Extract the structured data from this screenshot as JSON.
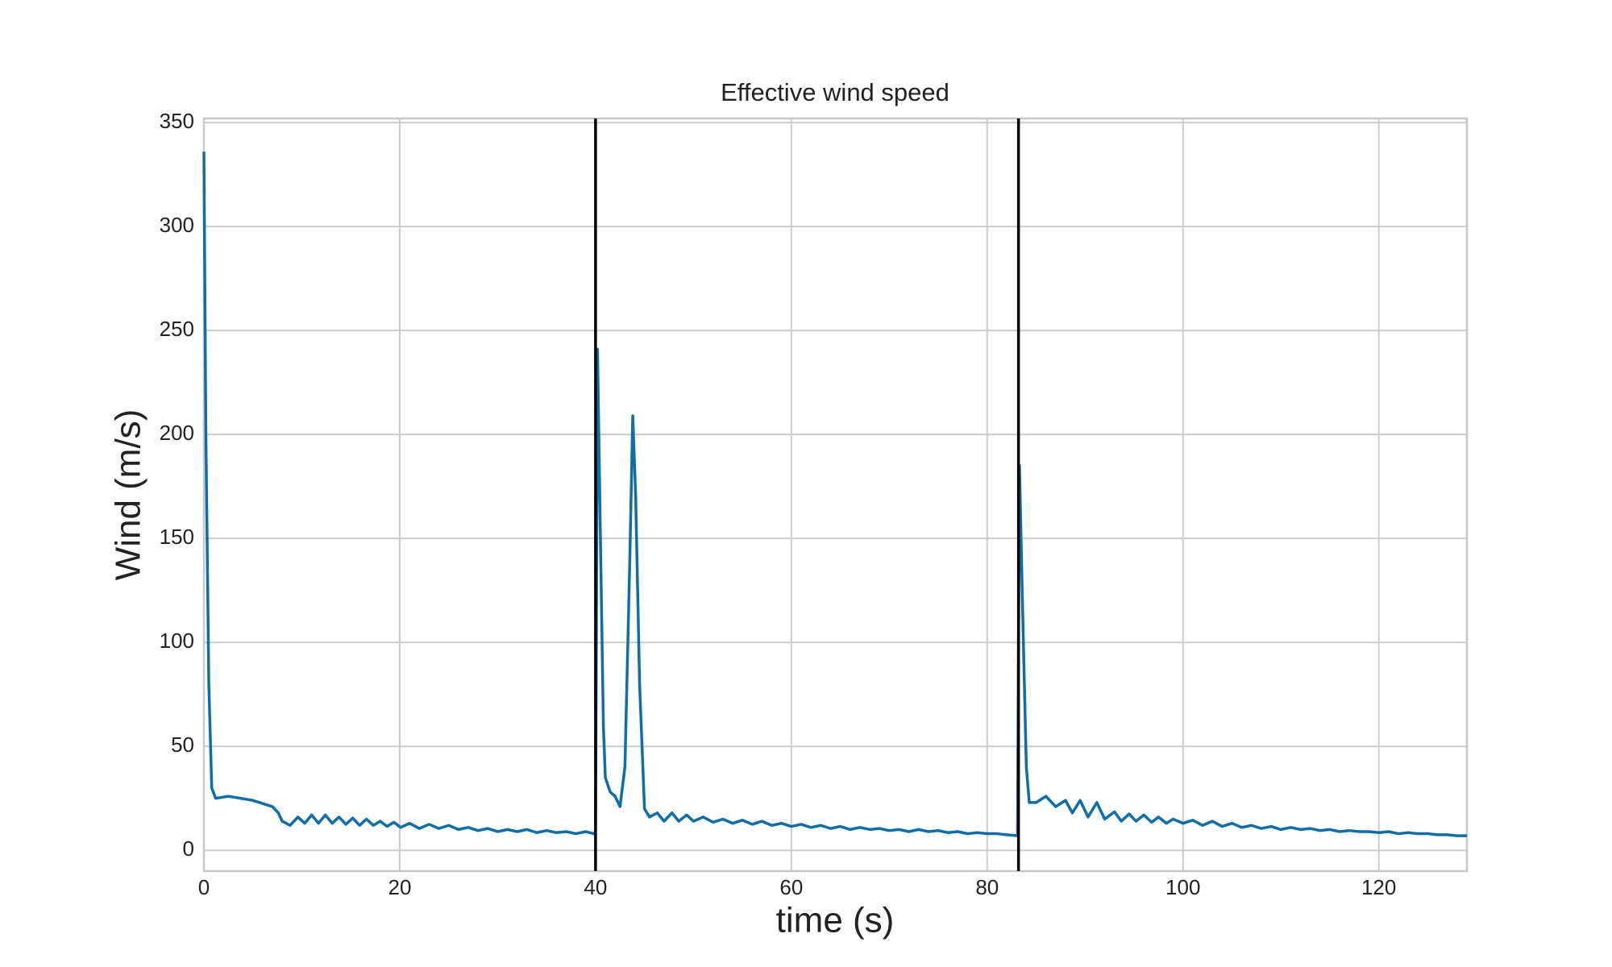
{
  "chart_data": {
    "type": "line",
    "title": "Effective wind speed",
    "xlabel": "time (s)",
    "ylabel": "Wind (m/s)",
    "x": [
      0,
      0.2,
      0.5,
      0.8,
      1.2,
      2.5,
      5,
      7,
      7.6,
      8,
      8.8,
      9.6,
      10.3,
      11,
      11.7,
      12.4,
      13.1,
      13.8,
      14.5,
      15.2,
      15.9,
      16.6,
      17.3,
      18,
      18.7,
      19.4,
      20.1,
      21,
      22,
      23,
      24,
      25,
      26,
      27,
      28,
      29,
      30,
      31,
      32,
      33,
      34,
      35,
      36,
      37,
      38,
      39,
      39.8,
      40,
      40.1,
      40.2,
      40.5,
      40.8,
      41,
      41.5,
      42,
      42.5,
      43,
      43.5,
      43.8,
      44.1,
      44.5,
      45,
      45.5,
      46.3,
      47,
      47.8,
      48.5,
      49.3,
      50,
      51,
      52,
      53,
      54,
      55,
      56,
      57,
      58,
      59,
      60,
      61,
      62,
      63,
      64,
      65,
      66,
      67,
      68,
      69,
      70,
      71,
      72,
      73,
      74,
      75,
      76,
      77,
      78,
      79,
      80,
      81,
      82,
      83.1,
      83.2,
      83.3,
      83.6,
      84,
      84.3,
      85,
      86,
      87,
      88,
      88.7,
      89.5,
      90.3,
      91.2,
      92,
      93,
      93.7,
      94.5,
      95.2,
      96,
      96.8,
      97.5,
      98.3,
      99,
      100,
      101,
      102,
      103,
      104,
      105,
      106,
      107,
      108,
      109,
      110,
      111,
      112,
      113,
      114,
      115,
      116,
      117,
      118,
      119,
      120,
      121,
      122,
      123,
      124,
      125,
      126,
      127,
      128,
      129
    ],
    "series": [
      {
        "name": "Effective wind speed",
        "color": "#0f6ea8",
        "values": [
          336,
          200,
          80,
          30,
          25,
          26,
          24,
          21,
          18,
          14,
          12,
          16,
          13,
          17,
          13,
          17,
          13,
          16,
          12.5,
          15.5,
          12,
          15,
          12,
          14,
          11.5,
          13.5,
          11,
          13,
          10.5,
          12.5,
          10.5,
          12,
          10,
          11,
          9.5,
          10.5,
          9,
          10,
          9,
          10,
          8.5,
          9.5,
          8.5,
          9,
          8,
          9,
          8,
          9,
          120,
          241,
          150,
          60,
          35,
          28,
          26,
          21,
          40,
          140,
          209,
          170,
          80,
          20,
          16,
          18,
          14,
          18,
          14,
          17,
          14,
          16,
          13.5,
          15,
          13,
          14.5,
          12.5,
          14,
          12,
          13,
          11.5,
          12.5,
          11,
          12,
          10.5,
          11.5,
          10,
          11,
          10,
          10.5,
          9.5,
          10,
          9,
          10,
          9,
          9.5,
          8.5,
          9,
          8,
          8.5,
          8,
          8,
          7.5,
          7,
          100,
          185,
          120,
          40,
          23,
          23,
          26,
          21,
          24,
          18,
          24,
          16,
          23,
          15,
          18.5,
          14,
          17.5,
          14,
          17,
          13.5,
          16,
          13,
          15,
          13,
          14.5,
          12,
          14,
          11.5,
          13,
          11,
          12,
          10.5,
          11.5,
          10,
          11,
          10,
          10.5,
          9.5,
          10,
          9,
          9.5,
          9,
          9,
          8.5,
          9,
          8,
          8.5,
          8,
          8,
          7.5,
          7.5,
          7,
          7
        ]
      }
    ],
    "vlines": [
      40,
      83.2
    ],
    "vline_color": "#000000",
    "xlim": [
      0,
      129
    ],
    "ylim": [
      -10,
      352
    ],
    "xticks": [
      0,
      20,
      40,
      60,
      80,
      100,
      120
    ],
    "yticks": [
      0,
      50,
      100,
      150,
      200,
      250,
      300,
      350
    ],
    "grid": true
  }
}
